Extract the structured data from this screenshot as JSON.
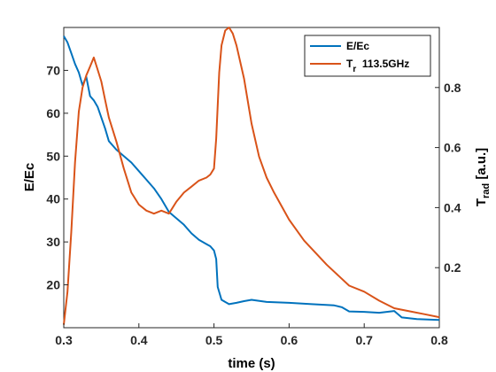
{
  "chart_data": {
    "type": "line",
    "xlabel": "time (s)",
    "ylabel_left": "E/Ec",
    "ylabel_right": {
      "main": "T",
      "sub": "rad",
      "rest": " [a.u.]"
    },
    "xlim": [
      0.3,
      0.8
    ],
    "ylim_left": [
      10,
      80
    ],
    "ylim_right": [
      0.0,
      1.0
    ],
    "x_ticks": [
      "0.3",
      "0.4",
      "0.5",
      "0.6",
      "0.7",
      "0.8"
    ],
    "y_left_ticks": [
      "20",
      "30",
      "40",
      "50",
      "60",
      "70"
    ],
    "y_right_ticks": [
      "0.2",
      "0.4",
      "0.6",
      "0.8"
    ],
    "legend_position": "top-right",
    "colors": {
      "series1": "#0072BD",
      "series2": "#D95319",
      "axes": "#262626"
    },
    "series": [
      {
        "name": "E/Ec",
        "axis": "left",
        "x": [
          0.3,
          0.305,
          0.31,
          0.315,
          0.32,
          0.325,
          0.33,
          0.335,
          0.34,
          0.345,
          0.35,
          0.355,
          0.36,
          0.37,
          0.38,
          0.39,
          0.4,
          0.41,
          0.42,
          0.43,
          0.44,
          0.45,
          0.46,
          0.47,
          0.48,
          0.49,
          0.495,
          0.5,
          0.503,
          0.505,
          0.51,
          0.52,
          0.53,
          0.54,
          0.55,
          0.57,
          0.6,
          0.63,
          0.66,
          0.67,
          0.68,
          0.7,
          0.72,
          0.74,
          0.75,
          0.77,
          0.8
        ],
        "y": [
          78.0,
          76.5,
          74.0,
          71.5,
          69.5,
          66.5,
          68.5,
          64.0,
          63.0,
          61.5,
          59.0,
          56.5,
          53.5,
          51.5,
          50.0,
          48.5,
          46.5,
          44.5,
          42.5,
          40.0,
          37.0,
          35.5,
          34.0,
          32.0,
          30.5,
          29.5,
          29.0,
          28.0,
          26.0,
          19.5,
          16.5,
          15.5,
          15.8,
          16.2,
          16.5,
          16.0,
          15.8,
          15.5,
          15.2,
          14.8,
          13.8,
          13.7,
          13.5,
          13.9,
          12.4,
          12.0,
          11.8
        ]
      },
      {
        "name": "T",
        "name_sub": "r",
        "name_rest": "  113.5GHz",
        "axis": "right",
        "x": [
          0.3,
          0.305,
          0.31,
          0.315,
          0.32,
          0.325,
          0.33,
          0.335,
          0.34,
          0.345,
          0.35,
          0.355,
          0.36,
          0.37,
          0.38,
          0.39,
          0.4,
          0.41,
          0.42,
          0.43,
          0.44,
          0.45,
          0.46,
          0.47,
          0.48,
          0.49,
          0.495,
          0.5,
          0.503,
          0.507,
          0.51,
          0.515,
          0.52,
          0.525,
          0.53,
          0.54,
          0.55,
          0.56,
          0.57,
          0.58,
          0.6,
          0.62,
          0.65,
          0.68,
          0.7,
          0.72,
          0.74,
          0.76,
          0.78,
          0.8
        ],
        "y": [
          0.01,
          0.12,
          0.32,
          0.55,
          0.72,
          0.8,
          0.84,
          0.87,
          0.9,
          0.86,
          0.82,
          0.76,
          0.7,
          0.62,
          0.53,
          0.45,
          0.41,
          0.39,
          0.38,
          0.39,
          0.38,
          0.42,
          0.45,
          0.47,
          0.49,
          0.5,
          0.51,
          0.53,
          0.63,
          0.85,
          0.94,
          0.99,
          1.0,
          0.98,
          0.94,
          0.83,
          0.68,
          0.57,
          0.5,
          0.45,
          0.36,
          0.29,
          0.21,
          0.14,
          0.12,
          0.09,
          0.065,
          0.055,
          0.045,
          0.035
        ]
      }
    ]
  }
}
